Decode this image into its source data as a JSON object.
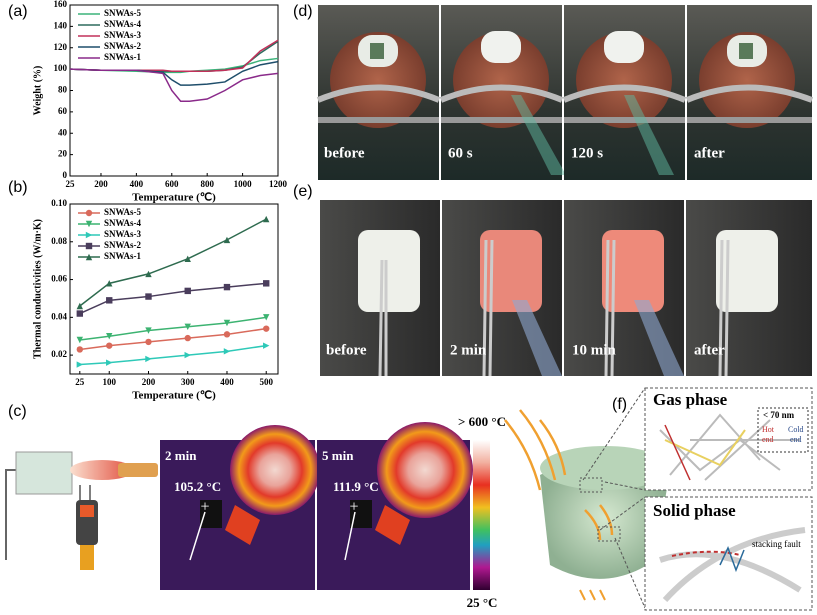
{
  "panel_labels": [
    "(a)",
    "(b)",
    "(c)",
    "(d)",
    "(e)",
    "(f)"
  ],
  "chart_data": [
    {
      "type": "line",
      "x_label": "Temperature (℃)",
      "y_label": "Weight (%)",
      "x": [
        25,
        200,
        400,
        550,
        600,
        650,
        700,
        800,
        900,
        1000,
        1100,
        1200
      ],
      "xlim": [
        25,
        1200
      ],
      "xticks": [
        25,
        200,
        400,
        600,
        800,
        1000,
        1200
      ],
      "ylim": [
        0,
        160
      ],
      "yticks": [
        0,
        20,
        40,
        60,
        80,
        100,
        120,
        140,
        160
      ],
      "grid": false,
      "legend": "upper left",
      "series": [
        {
          "name": "SNWAs-5",
          "color": "#3cb37a",
          "values": [
            100,
            99,
            98,
            97,
            97,
            97,
            98,
            99,
            100,
            103,
            108,
            110
          ]
        },
        {
          "name": "SNWAs-4",
          "color": "#2e6b5e",
          "values": [
            100,
            99,
            99,
            98,
            98,
            98,
            98,
            98,
            99,
            102,
            115,
            126
          ]
        },
        {
          "name": "SNWAs-3",
          "color": "#c2305a",
          "values": [
            100,
            99,
            99,
            99,
            98,
            98,
            98,
            98,
            99,
            101,
            117,
            127
          ]
        },
        {
          "name": "SNWAs-2",
          "color": "#1f4e6b",
          "values": [
            100,
            99,
            99,
            97,
            90,
            85,
            85,
            86,
            88,
            98,
            104,
            107
          ]
        },
        {
          "name": "SNWAs-1",
          "color": "#8a2a8a",
          "values": [
            100,
            99,
            99,
            96,
            80,
            70,
            70,
            72,
            80,
            90,
            94,
            96
          ]
        }
      ]
    },
    {
      "type": "line",
      "x_label": "Temperature (℃)",
      "y_label": "Thermal conductivities (W/m·K)",
      "x": [
        25,
        100,
        200,
        300,
        400,
        500
      ],
      "xlim": [
        0,
        530
      ],
      "xticks": [
        25,
        100,
        200,
        300,
        400,
        500
      ],
      "ylim": [
        0.01,
        0.1
      ],
      "yticks": [
        0.02,
        0.04,
        0.06,
        0.08,
        {
          "value": 0.1,
          "label": "0.10"
        }
      ],
      "grid": false,
      "legend": "upper left",
      "series": [
        {
          "name": "SNWAs-5",
          "color": "#d96a5b",
          "marker": "circle",
          "values": [
            0.023,
            0.025,
            0.027,
            0.029,
            0.031,
            0.034
          ]
        },
        {
          "name": "SNWAs-4",
          "color": "#3cb371",
          "marker": "triangle-down",
          "values": [
            0.028,
            0.03,
            0.033,
            0.035,
            0.037,
            0.04
          ]
        },
        {
          "name": "SNWAs-3",
          "color": "#2ec9b8",
          "marker": "triangle-right",
          "values": [
            0.015,
            0.016,
            0.018,
            0.02,
            0.022,
            0.025
          ]
        },
        {
          "name": "SNWAs-2",
          "color": "#4a3d5c",
          "marker": "square",
          "values": [
            0.042,
            0.049,
            0.051,
            0.054,
            0.056,
            0.058
          ]
        },
        {
          "name": "SNWAs-1",
          "color": "#2e6b4f",
          "marker": "triangle-up",
          "values": [
            0.046,
            0.058,
            0.063,
            0.071,
            0.081,
            0.092
          ]
        }
      ]
    }
  ],
  "torch_frames": {
    "captions": [
      "before",
      "60 s",
      "120 s",
      "after"
    ]
  },
  "flame_frames": {
    "captions": [
      "before",
      "2 min",
      "10 min",
      "after"
    ]
  },
  "thermal_images": [
    {
      "time": "2 min",
      "temperature": "105.2 °C"
    },
    {
      "time": "5 min",
      "temperature": "111.9 °C"
    }
  ],
  "colorbar": {
    "max_label": "> 600 °C",
    "min_label": "25 °C"
  },
  "mechanism": {
    "gas_phase": "Gas phase",
    "pore_size": "< 70 nm",
    "hot": "Hot",
    "hot_end": "end",
    "cold": "Cold",
    "cold_end": "end",
    "solid_phase": "Solid phase",
    "stacking_fault": "stacking fault"
  }
}
